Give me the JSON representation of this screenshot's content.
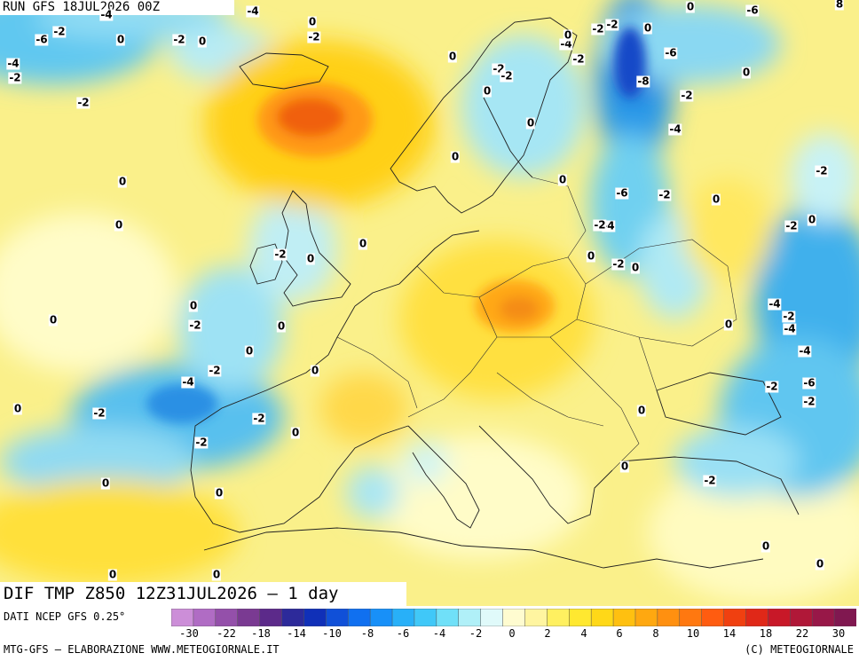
{
  "header": {
    "run_text": "RUN GFS 18JUL2026 00Z"
  },
  "valid_text": "DIF TMP Z850 12Z31JUL2026 – 1 day",
  "footer": {
    "source": "DATI NCEP GFS 0.25°",
    "credit_left": "MTG-GFS – ELABORAZIONE WWW.METEOGIORNALE.IT",
    "credit_right": "(C) METEOGIORNALE"
  },
  "legend": {
    "ticks": [
      "-30",
      "-22",
      "-18",
      "-14",
      "-10",
      "-8",
      "-6",
      "-4",
      "-2",
      "0",
      "2",
      "4",
      "6",
      "8",
      "10",
      "14",
      "18",
      "22",
      "30"
    ],
    "colors": [
      "#cc8ed8",
      "#b06cc4",
      "#9450aa",
      "#7a3a92",
      "#5c2a8a",
      "#2d2a9a",
      "#1030b8",
      "#1050d8",
      "#1070f0",
      "#1890f8",
      "#28b0f8",
      "#40c8f8",
      "#70e0f8",
      "#b0f0f8",
      "#e0fafa",
      "#fffcd0",
      "#fff5a0",
      "#fff060",
      "#ffe830",
      "#ffd818",
      "#ffc010",
      "#ffa810",
      "#ff9010",
      "#ff7810",
      "#ff5c10",
      "#f04010",
      "#e02818",
      "#c81828",
      "#b01838",
      "#981848",
      "#801850"
    ]
  },
  "contour_labels": [
    {
      "t": "-4"
    },
    {
      "t": "0"
    },
    {
      "t": "0"
    },
    {
      "t": "0"
    },
    {
      "t": "-6"
    },
    {
      "t": "8"
    },
    {
      "t": "-2"
    },
    {
      "t": "-2"
    },
    {
      "t": "0"
    },
    {
      "t": "-2"
    },
    {
      "t": "-4"
    },
    {
      "t": "-6"
    },
    {
      "t": "-4"
    },
    {
      "t": "-2"
    },
    {
      "t": "-4"
    },
    {
      "t": "-2"
    },
    {
      "t": "0"
    },
    {
      "t": "-6"
    },
    {
      "t": "0"
    },
    {
      "t": "-2"
    },
    {
      "t": "-2"
    },
    {
      "t": "-8"
    },
    {
      "t": "0"
    },
    {
      "t": "-2"
    },
    {
      "t": "-2"
    },
    {
      "t": "-2"
    },
    {
      "t": "0"
    },
    {
      "t": "-4"
    },
    {
      "t": "0"
    },
    {
      "t": "0"
    },
    {
      "t": "0"
    },
    {
      "t": "0"
    },
    {
      "t": "-6"
    },
    {
      "t": "-2"
    },
    {
      "t": "0"
    },
    {
      "t": "-2"
    },
    {
      "t": "0"
    },
    {
      "t": "-2"
    },
    {
      "t": "0"
    },
    {
      "t": "-2"
    },
    {
      "t": "-4"
    },
    {
      "t": "0"
    },
    {
      "t": "0"
    },
    {
      "t": "-2"
    },
    {
      "t": "0"
    },
    {
      "t": "-2"
    },
    {
      "t": "0"
    },
    {
      "t": "-4"
    },
    {
      "t": "-2"
    },
    {
      "t": "0"
    },
    {
      "t": "-2"
    },
    {
      "t": "-4"
    },
    {
      "t": "-2"
    },
    {
      "t": "0"
    },
    {
      "t": "0"
    },
    {
      "t": "-2"
    },
    {
      "t": "-4"
    },
    {
      "t": "0"
    },
    {
      "t": "-2"
    },
    {
      "t": "-6"
    },
    {
      "t": "0"
    },
    {
      "t": "-2"
    },
    {
      "t": "-2"
    },
    {
      "t": "0"
    },
    {
      "t": "-2"
    },
    {
      "t": "0"
    },
    {
      "t": "0"
    },
    {
      "t": "0"
    },
    {
      "t": "0"
    },
    {
      "t": "0"
    },
    {
      "t": "0"
    },
    {
      "t": "0"
    },
    {
      "t": "0"
    },
    {
      "t": "0"
    },
    {
      "t": "-4"
    },
    {
      "t": "-2"
    },
    {
      "t": "-2"
    },
    {
      "t": "0"
    },
    {
      "t": "0"
    }
  ]
}
